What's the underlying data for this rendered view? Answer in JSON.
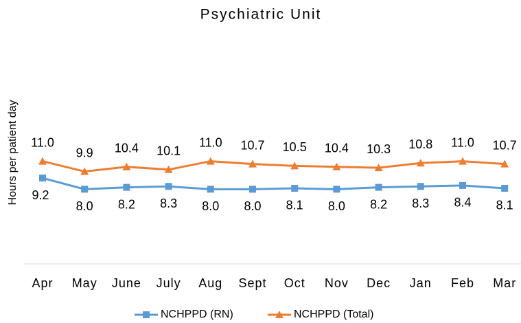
{
  "chart_data": {
    "type": "line",
    "title": "Psychiatric Unit",
    "y_label": "Hours per patient day",
    "categories": [
      "Apr",
      "May",
      "June",
      "July",
      "Aug",
      "Sept",
      "Oct",
      "Nov",
      "Dec",
      "Jan",
      "Feb",
      "Mar"
    ],
    "series": [
      {
        "name": "NCHPPD (RN)",
        "color": "#5b9bd5",
        "marker": "square",
        "values": [
          9.2,
          8.0,
          8.2,
          8.3,
          8.0,
          8.0,
          8.1,
          8.0,
          8.2,
          8.3,
          8.4,
          8.1
        ],
        "value_labels": [
          "9.2",
          "8.0",
          "8.2",
          "8.3",
          "8.0",
          "8.0",
          "8.1",
          "8.0",
          "8.2",
          "8.3",
          "8.4",
          "8.1"
        ]
      },
      {
        "name": "NCHPPD (Total)",
        "color": "#ed7d31",
        "marker": "triangle",
        "values": [
          11.0,
          9.9,
          10.4,
          10.1,
          11.0,
          10.7,
          10.5,
          10.4,
          10.3,
          10.8,
          11.0,
          10.7
        ],
        "value_labels": [
          "11.0",
          "9.9",
          "10.4",
          "10.1",
          "11.0",
          "10.7",
          "10.5",
          "10.4",
          "10.3",
          "10.8",
          "11.0",
          "10.7"
        ]
      }
    ],
    "ylim": [
      0,
      24
    ],
    "legend": "bottom"
  }
}
